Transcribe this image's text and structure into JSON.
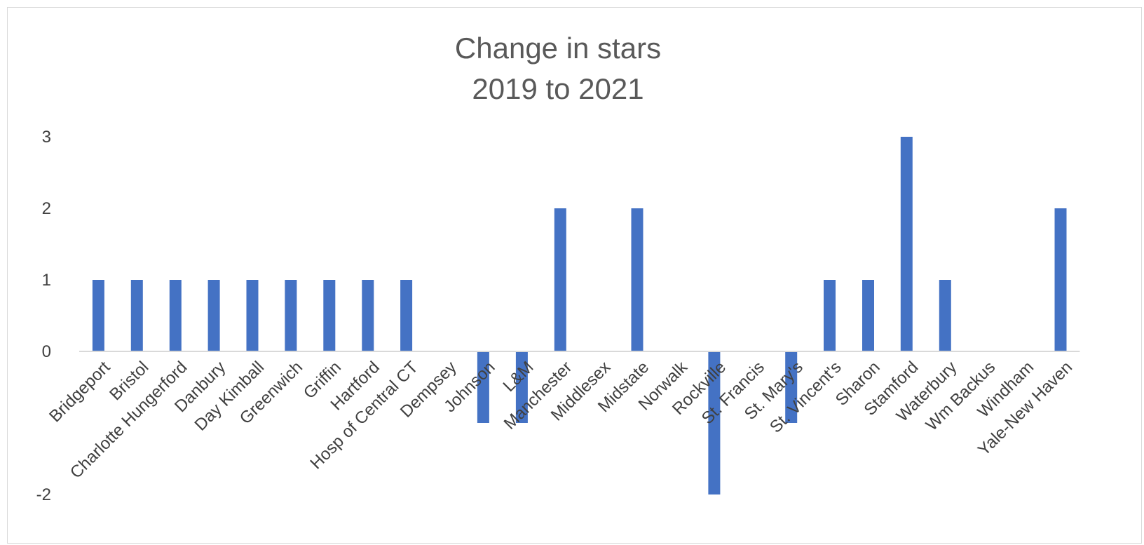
{
  "chart_data": {
    "type": "bar",
    "title": [
      "Change in stars",
      "2019 to 2021"
    ],
    "xlabel": "",
    "ylabel": "",
    "ylim": [
      -2,
      3
    ],
    "yticks": [
      -2,
      0,
      1,
      2,
      3
    ],
    "grid": false,
    "legend": "none",
    "bar_color": "#4472C4",
    "categories": [
      "Bridgeport",
      "Bristol",
      "Charlotte Hungerford",
      "Danbury",
      "Day Kimball",
      "Greenwich",
      "Griffin",
      "Hartford",
      "Hosp of Central CT",
      "Dempsey",
      "Johnson",
      "L&M",
      "Manchester",
      "Middlesex",
      "Midstate",
      "Norwalk",
      "Rockville",
      "St. Francis",
      "St. Mary's",
      "St. Vincent's",
      "Sharon",
      "Stamford",
      "Waterbury",
      "Wm Backus",
      "Windham",
      "Yale-New Haven"
    ],
    "values": [
      1,
      1,
      1,
      1,
      1,
      1,
      1,
      1,
      1,
      0,
      -1,
      -1,
      2,
      0,
      2,
      0,
      -2,
      0,
      -1,
      1,
      1,
      3,
      1,
      0,
      0,
      2
    ]
  }
}
